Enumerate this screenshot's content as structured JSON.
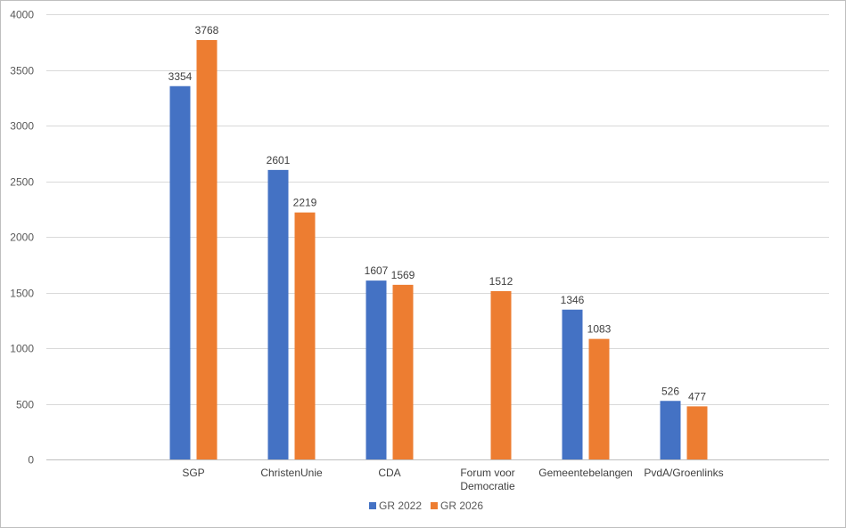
{
  "chart_data": {
    "type": "bar",
    "title": "",
    "xlabel": "",
    "ylabel": "",
    "ylim": [
      0,
      4000
    ],
    "yticks": [
      0,
      500,
      1000,
      1500,
      2000,
      2500,
      3000,
      3500,
      4000
    ],
    "grid": true,
    "legend_position": "bottom",
    "categories": [
      [
        "SGP"
      ],
      [
        "ChristenUnie"
      ],
      [
        "CDA"
      ],
      [
        "Forum voor",
        "Democratie"
      ],
      [
        "Gemeentebelangen"
      ],
      [
        "PvdA/Groenlinks"
      ]
    ],
    "series": [
      {
        "name": "GR 2022",
        "color": "#4472c4",
        "values": [
          3354,
          2601,
          1607,
          null,
          1346,
          526
        ]
      },
      {
        "name": "GR 2026",
        "color": "#ed7d31",
        "values": [
          3768,
          2219,
          1569,
          1512,
          1083,
          477
        ]
      }
    ]
  }
}
